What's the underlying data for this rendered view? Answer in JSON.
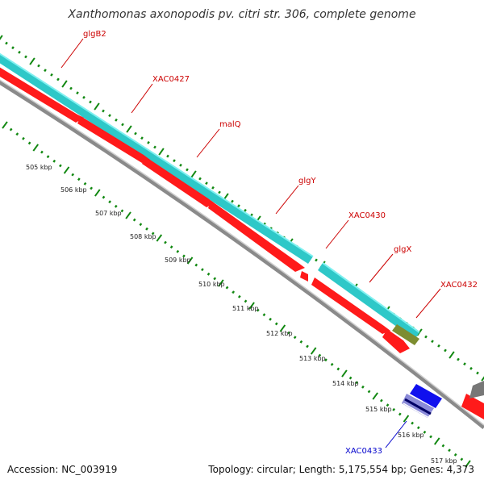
{
  "title": "Xanthomonas axonopodis pv. citri str. 306, complete genome",
  "footer": {
    "accession": "Accession: NC_003919",
    "summary": "Topology: circular; Length: 5,175,554 bp; Genes: 4,373"
  },
  "colors": {
    "forward_gene": "#ff0000",
    "cds_band": "#2ecfcf",
    "selected_gene": "#0000ee",
    "variant_feature": "#7a8a30",
    "gene_label_forward": "#cc0000",
    "gene_label_reverse": "#0000cc",
    "tick": "#118811",
    "backbone": "#888888"
  },
  "gene_labels": [
    {
      "name": "glgB2",
      "strand": "forward"
    },
    {
      "name": "XAC0427",
      "strand": "forward"
    },
    {
      "name": "malQ",
      "strand": "forward"
    },
    {
      "name": "glgY",
      "strand": "forward"
    },
    {
      "name": "XAC0430",
      "strand": "forward"
    },
    {
      "name": "glgX",
      "strand": "forward"
    },
    {
      "name": "XAC0432",
      "strand": "forward"
    },
    {
      "name": "XAC0433",
      "strand": "reverse"
    }
  ],
  "kbp_labels": [
    "505 kbp",
    "506 kbp",
    "507 kbp",
    "508 kbp",
    "509 kbp",
    "510 kbp",
    "511 kbp",
    "512 kbp",
    "513 kbp",
    "514 kbp",
    "515 kbp",
    "516 kbp",
    "517 kbp"
  ]
}
